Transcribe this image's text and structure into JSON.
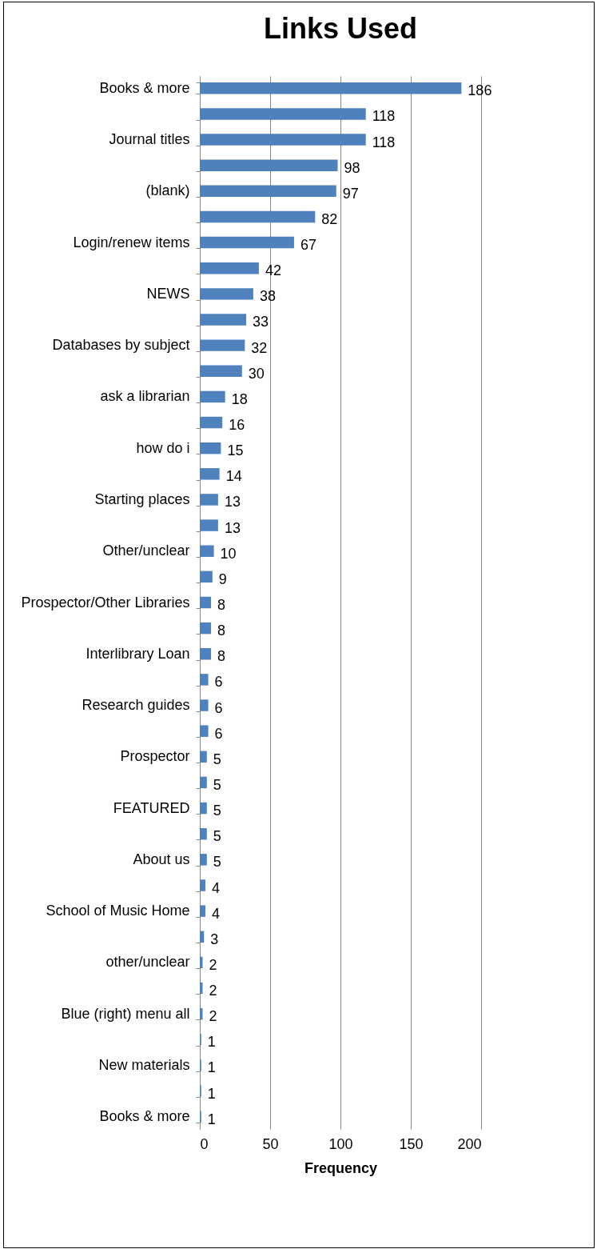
{
  "chart_data": {
    "type": "bar",
    "orientation": "horizontal",
    "title": "Links Used",
    "xlabel": "Frequency",
    "categories": [
      "Books & more",
      null,
      "Journal titles",
      null,
      "(blank)",
      null,
      "Login/renew items",
      null,
      "NEWS",
      null,
      "Databases by subject",
      null,
      "ask a librarian",
      null,
      "how do i",
      null,
      "Starting places",
      null,
      "Other/unclear",
      null,
      "Prospector/Other Libraries",
      null,
      "Interlibrary Loan",
      null,
      "Research guides",
      null,
      "Prospector",
      null,
      "FEATURED",
      null,
      "About us",
      null,
      "School of Music Home",
      null,
      "other/unclear",
      null,
      "Blue (right) menu all",
      null,
      "New materials",
      null,
      "Books & more"
    ],
    "values": [
      186,
      118,
      118,
      98,
      97,
      82,
      67,
      42,
      38,
      33,
      32,
      30,
      18,
      16,
      15,
      14,
      13,
      13,
      10,
      9,
      8,
      8,
      8,
      6,
      6,
      6,
      5,
      5,
      5,
      5,
      5,
      4,
      4,
      3,
      2,
      2,
      2,
      1,
      1,
      1,
      1
    ],
    "color": "#4f81bd",
    "xlim": [
      0,
      200
    ],
    "xticks": [
      0,
      50,
      100,
      150,
      200
    ],
    "grid": "x",
    "data_labels": true
  }
}
